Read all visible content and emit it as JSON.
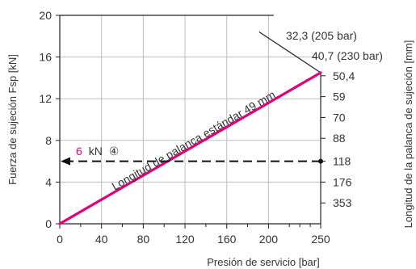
{
  "colors": {
    "series_line": "#e0007a",
    "force_value": "#e0007a",
    "axis": "#222222",
    "grid": "#bdbdbd",
    "text": "#333333"
  },
  "chart_data": {
    "type": "line",
    "xlabel": "Presión de servicio [bar]",
    "ylabel": "Fuerza de sujeción Fsp [kN]",
    "y2label": "Longitud de la palanca de sujeción [mm]",
    "xlim": [
      0,
      250
    ],
    "ylim": [
      0,
      20
    ],
    "x_ticks": [
      "0",
      "40",
      "80",
      "120",
      "160",
      "200",
      "250"
    ],
    "x_tick_values": [
      0,
      40,
      80,
      120,
      160,
      200,
      250
    ],
    "x_minor_tick_values": [
      20,
      60,
      100,
      140,
      180,
      220,
      230,
      240
    ],
    "y_ticks": [
      "0",
      "4",
      "8",
      "12",
      "16",
      "20"
    ],
    "y_tick_values": [
      0,
      4,
      8,
      12,
      16,
      20
    ],
    "grid": true,
    "series": [
      {
        "name": "Longitud de palanca estándar 49 mm",
        "x": [
          0,
          250
        ],
        "y": [
          0,
          14.5
        ]
      }
    ],
    "right_scale": [
      {
        "label": "50,4",
        "y": 14.2
      },
      {
        "label": "59",
        "y": 12.2
      },
      {
        "label": "70",
        "y": 10.2
      },
      {
        "label": "88",
        "y": 8.2
      },
      {
        "label": "118",
        "y": 6.0
      },
      {
        "label": "176",
        "y": 4.0
      },
      {
        "label": "353",
        "y": 2.0
      }
    ],
    "annotations": {
      "limit_205": "32,3 (205 bar)",
      "limit_230": "40,7 (230 bar)",
      "force_value": "6",
      "force_unit": "kN",
      "force_marker": "④",
      "force_y": 6
    },
    "limit_boundary": [
      {
        "x": 205,
        "y": 18.1
      },
      {
        "x": 250,
        "y": 14.5
      }
    ]
  }
}
